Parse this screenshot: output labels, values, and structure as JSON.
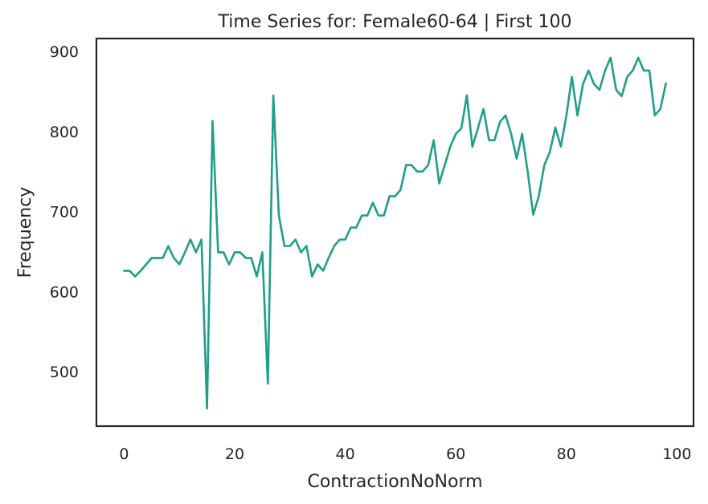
{
  "chart_data": {
    "type": "line",
    "title": "Time Series for: Female60-64 | First 100",
    "xlabel": "ContractionNoNorm",
    "ylabel": "Frequency",
    "xlim": [
      -5,
      103
    ],
    "ylim": [
      432,
      916
    ],
    "x_ticks": [
      0,
      20,
      40,
      60,
      80,
      100
    ],
    "y_ticks": [
      500,
      600,
      700,
      800,
      900
    ],
    "grid": false,
    "line_color": "#1f9e89",
    "x": [
      0,
      1,
      2,
      3,
      4,
      5,
      6,
      7,
      8,
      9,
      10,
      11,
      12,
      13,
      14,
      15,
      16,
      17,
      18,
      19,
      20,
      21,
      22,
      23,
      24,
      25,
      26,
      27,
      28,
      29,
      30,
      31,
      32,
      33,
      34,
      35,
      36,
      37,
      38,
      39,
      40,
      41,
      42,
      43,
      44,
      45,
      46,
      47,
      48,
      49,
      50,
      51,
      52,
      53,
      54,
      55,
      56,
      57,
      58,
      59,
      60,
      61,
      62,
      63,
      64,
      65,
      66,
      67,
      68,
      69,
      70,
      71,
      72,
      73,
      74,
      75,
      76,
      77,
      78,
      79,
      80,
      81,
      82,
      83,
      84,
      85,
      86,
      87,
      88,
      89,
      90,
      91,
      92,
      93,
      94,
      95,
      96,
      97,
      98
    ],
    "y": [
      626,
      626,
      619,
      626,
      634,
      642,
      642,
      642,
      657,
      642,
      634,
      649,
      665,
      649,
      665,
      454,
      813,
      649,
      649,
      634,
      649,
      649,
      642,
      642,
      619,
      649,
      485,
      845,
      695,
      657,
      657,
      665,
      649,
      657,
      619,
      634,
      626,
      642,
      657,
      665,
      665,
      680,
      680,
      695,
      695,
      711,
      695,
      695,
      719,
      719,
      727,
      758,
      758,
      750,
      750,
      758,
      789,
      735,
      758,
      781,
      797,
      804,
      845,
      781,
      804,
      828,
      789,
      789,
      812,
      820,
      797,
      766,
      797,
      750,
      696,
      719,
      758,
      774,
      805,
      781,
      820,
      868,
      820,
      859,
      876,
      859,
      852,
      876,
      892,
      852,
      844,
      868,
      876,
      892,
      876,
      876,
      820,
      828,
      860
    ]
  }
}
